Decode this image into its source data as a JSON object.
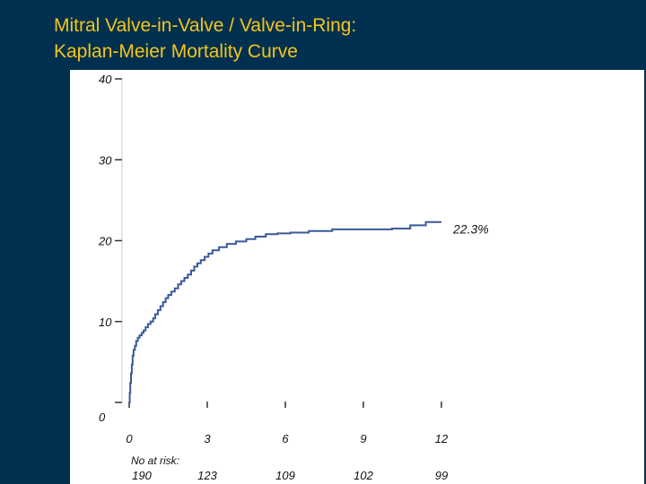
{
  "title": {
    "line1": "Mitral Valve-in-Valve / Valve-in-Ring:",
    "line2": "Kaplan-Meier Mortality Curve"
  },
  "colors": {
    "background": "#003050",
    "title": "#f5c518",
    "curve": "#3a5a9a",
    "panel": "#ffffff"
  },
  "chart_data": {
    "type": "line",
    "step": true,
    "x_ticks": [
      0,
      3,
      6,
      9,
      12
    ],
    "x_tick_labels": [
      "0",
      "3",
      "6",
      "9",
      "12"
    ],
    "y_ticks": [
      0,
      10,
      20,
      30,
      40
    ],
    "y_tick_labels": [
      "0",
      "10",
      "20",
      "30",
      "40"
    ],
    "xlim": [
      0,
      12
    ],
    "ylim": [
      0,
      40
    ],
    "grid": false,
    "series": [
      {
        "x": [
          0,
          0.02,
          0.04,
          0.07,
          0.1,
          0.13,
          0.17,
          0.22,
          0.27,
          0.33,
          0.4,
          0.48,
          0.55,
          0.63,
          0.72,
          0.82,
          0.92,
          1.0,
          1.1,
          1.2,
          1.3,
          1.4,
          1.5,
          1.62,
          1.75,
          1.88,
          2.0,
          2.12,
          2.25,
          2.38,
          2.5,
          2.62,
          2.75,
          2.9,
          3.05,
          3.2,
          3.45,
          3.75,
          4.1,
          4.5,
          4.85,
          5.25,
          5.7,
          6.2,
          6.9,
          7.8,
          8.6,
          9.3,
          10.1,
          10.8,
          11.4,
          12.0
        ],
        "y": [
          0,
          1.2,
          2.4,
          3.6,
          4.7,
          5.8,
          6.5,
          7.0,
          7.6,
          8.0,
          8.3,
          8.6,
          8.9,
          9.3,
          9.7,
          10.0,
          10.4,
          10.9,
          11.4,
          11.9,
          12.4,
          12.9,
          13.3,
          13.7,
          14.1,
          14.6,
          15.0,
          15.4,
          15.8,
          16.3,
          16.8,
          17.2,
          17.6,
          18.0,
          18.4,
          18.8,
          19.2,
          19.6,
          19.9,
          20.2,
          20.5,
          20.8,
          20.9,
          21.0,
          21.2,
          21.4,
          21.4,
          21.4,
          21.5,
          21.9,
          22.3,
          22.3
        ]
      }
    ],
    "annotation": "22.3%",
    "risk_label": "No at risk:",
    "risk_counts": [
      "190",
      "123",
      "109",
      "102",
      "99"
    ]
  }
}
